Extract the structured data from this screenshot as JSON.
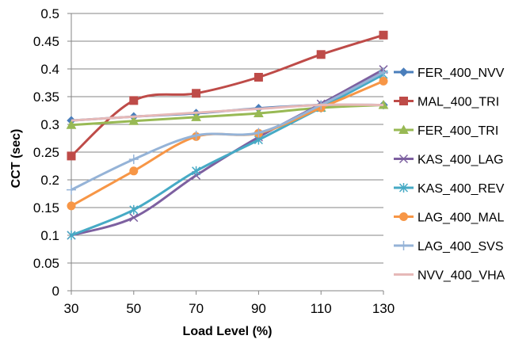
{
  "chart_data": {
    "type": "line",
    "title": "",
    "xlabel": "Load Level (%)",
    "ylabel": "CCT (sec)",
    "x": [
      30,
      50,
      70,
      90,
      110,
      130
    ],
    "x_tick_labels": [
      "30",
      "50",
      "70",
      "90",
      "110",
      "130"
    ],
    "ylim": [
      0,
      0.5
    ],
    "y_ticks": [
      0,
      0.05,
      0.1,
      0.15,
      0.2,
      0.25,
      0.3,
      0.35,
      0.4,
      0.45,
      0.5
    ],
    "y_tick_labels": [
      "0",
      "0.05",
      "0.1",
      "0.15",
      "0.2",
      "0.25",
      "0.3",
      "0.35",
      "0.4",
      "0.45",
      "0.5"
    ],
    "grid": "horizontal",
    "legend_position": "right",
    "smooth": true,
    "series": [
      {
        "name": "FER_400_NVV",
        "color": "#4A7EBB",
        "marker": "diamond",
        "values": [
          0.307,
          0.314,
          0.32,
          0.329,
          0.335,
          0.335
        ]
      },
      {
        "name": "MAL_400_TRI",
        "color": "#BE4B48",
        "marker": "square",
        "values": [
          0.243,
          0.343,
          0.356,
          0.385,
          0.426,
          0.461
        ]
      },
      {
        "name": "FER_400_TRI",
        "color": "#98B954",
        "marker": "triangle",
        "values": [
          0.299,
          0.306,
          0.313,
          0.32,
          0.33,
          0.335
        ]
      },
      {
        "name": "KAS_400_LAG",
        "color": "#7D60A0",
        "marker": "x",
        "values": [
          0.1,
          0.132,
          0.208,
          0.277,
          0.337,
          0.399
        ]
      },
      {
        "name": "KAS_400_REV",
        "color": "#46AAC5",
        "marker": "asterisk",
        "values": [
          0.1,
          0.146,
          0.216,
          0.272,
          0.33,
          0.39
        ]
      },
      {
        "name": "LAG_400_MAL",
        "color": "#F79646",
        "marker": "circle",
        "values": [
          0.153,
          0.216,
          0.278,
          0.284,
          0.33,
          0.378
        ]
      },
      {
        "name": "LAG_400_SVS",
        "color": "#95B3D7",
        "marker": "plus",
        "values": [
          0.182,
          0.237,
          0.28,
          0.285,
          0.335,
          0.394
        ]
      },
      {
        "name": "NVV_400_VHA",
        "color": "#E6B9B8",
        "marker": "none",
        "values": [
          0.307,
          0.314,
          0.321,
          0.328,
          0.335,
          0.335
        ]
      }
    ]
  }
}
